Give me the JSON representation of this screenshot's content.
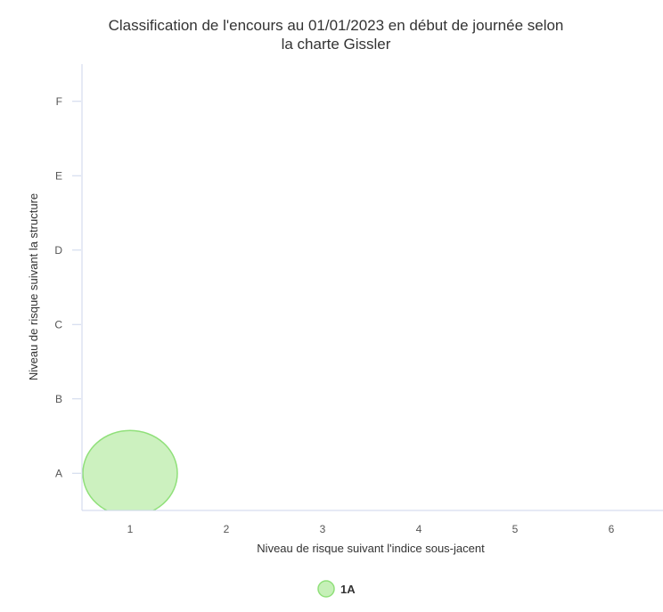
{
  "chart_data": {
    "type": "bubble",
    "title": "Classification de l'encours au 01/01/2023 en début de journée selon",
    "title_line2": "la charte Gissler",
    "xlabel": "Niveau de risque suivant l'indice sous-jacent",
    "ylabel": "Niveau de risque suivant la structure",
    "x_ticks": [
      "1",
      "2",
      "3",
      "4",
      "5",
      "6"
    ],
    "y_categories": [
      "A",
      "B",
      "C",
      "D",
      "E",
      "F"
    ],
    "series": [
      {
        "name": "1A",
        "color": "#c6f0b8",
        "stroke": "#90e07a",
        "points": [
          {
            "x": 1,
            "y": "A"
          }
        ]
      }
    ],
    "legend_position": "bottom-center",
    "grid": false
  }
}
